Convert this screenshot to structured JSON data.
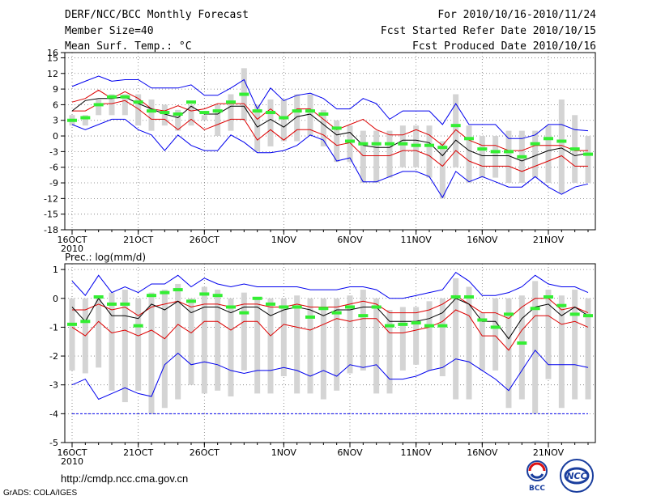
{
  "header": {
    "title": "DERF/NCC/BCC Monthly Forecast",
    "member_size": "Member Size=40",
    "variable1": "Mean Surf. Temp.: °C",
    "period": "For 2010/10/16-2010/11/24",
    "started": "Fcst Started Refer Date 2010/10/15",
    "produced": "Fcst Produced Date 2010/10/16"
  },
  "footer": {
    "url": "http://cmdp.ncc.cma.gov.cn",
    "grads": "GrADS: COLA/IGES",
    "logo_left": "BCC",
    "logo_right": "NCC"
  },
  "colors": {
    "box": "#d4d4d4",
    "envelope": "#0000ee",
    "band": "#dd0000",
    "mean": "#000000",
    "marker": "#33ee33",
    "grid": "#777777"
  },
  "chart_data": [
    {
      "type": "box-line",
      "title": "Mean Surf. Temp.: °C",
      "xlabel": "",
      "ylabel": "",
      "ylim": [
        -18,
        16
      ],
      "yticks": [
        -18,
        -15,
        -12,
        -9,
        -6,
        -3,
        0,
        3,
        6,
        9,
        12,
        15,
        16
      ],
      "xticks": [
        {
          "day": 0,
          "label": "16OCT"
        },
        {
          "day": 5,
          "label": "21OCT"
        },
        {
          "day": 10,
          "label": "26OCT"
        },
        {
          "day": 16,
          "label": "1NOV"
        },
        {
          "day": 21,
          "label": "6NOV"
        },
        {
          "day": 26,
          "label": "11NOV"
        },
        {
          "day": 31,
          "label": "16NOV"
        },
        {
          "day": 36,
          "label": "21NOV"
        }
      ],
      "year_label": "2010",
      "days": 40,
      "x": [
        0,
        1,
        2,
        3,
        4,
        5,
        6,
        7,
        8,
        9,
        10,
        11,
        12,
        13,
        14,
        15,
        16,
        17,
        18,
        19,
        20,
        21,
        22,
        23,
        24,
        25,
        26,
        27,
        28,
        29,
        30,
        31,
        32,
        33,
        34,
        35,
        36,
        37,
        38,
        39
      ],
      "series": [
        {
          "name": "max",
          "values": [
            9.5,
            10.5,
            11.5,
            10.5,
            10.8,
            10.8,
            9.2,
            9.2,
            9.2,
            9.8,
            7.8,
            7.8,
            9.2,
            10.8,
            5.2,
            9.2,
            6.8,
            7.8,
            8.2,
            7.2,
            5.2,
            5.2,
            7.2,
            6.2,
            3.2,
            4.8,
            4.8,
            4.8,
            2.2,
            6.2,
            2.2,
            2.2,
            2.2,
            -0.5,
            -0.5,
            0.2,
            2.2,
            2.2,
            1.2,
            1.0
          ]
        },
        {
          "name": "q_upper",
          "values": [
            6.5,
            7.2,
            8.8,
            7.2,
            8.5,
            7.2,
            5.2,
            4.8,
            5.8,
            4.8,
            5.2,
            6.2,
            6.2,
            6.2,
            3.2,
            5.2,
            3.2,
            5.2,
            5.2,
            3.2,
            1.2,
            2.2,
            3.2,
            1.2,
            0.2,
            0.2,
            1.2,
            0.2,
            -1.8,
            1.2,
            -0.8,
            -1.8,
            -1.8,
            -2.8,
            -2.8,
            -1.8,
            -1.8,
            -1.8,
            -2.8,
            -2.8
          ]
        },
        {
          "name": "mean",
          "values": [
            4.8,
            6.8,
            7.2,
            7.2,
            7.5,
            6.2,
            5.2,
            4.2,
            3.5,
            5.7,
            4.2,
            4.2,
            5.7,
            5.7,
            1.7,
            3.2,
            1.7,
            3.7,
            4.2,
            2.2,
            0.2,
            0.7,
            -1.8,
            -2.2,
            -2.2,
            -0.8,
            -0.8,
            -1.3,
            -3.8,
            -0.8,
            -2.8,
            -3.8,
            -3.8,
            -3.8,
            -4.8,
            -3.8,
            -2.8,
            -2.3,
            -3.8,
            -3.3
          ]
        },
        {
          "name": "q_lower",
          "values": [
            4.8,
            4.8,
            6.2,
            6.2,
            6.8,
            5.2,
            3.2,
            3.2,
            1.2,
            3.2,
            1.2,
            2.2,
            3.2,
            3.2,
            -0.8,
            1.2,
            -0.8,
            1.2,
            1.2,
            0.2,
            -1.8,
            -1.3,
            -3.8,
            -3.8,
            -3.8,
            -2.8,
            -2.8,
            -3.8,
            -5.8,
            -2.8,
            -4.8,
            -5.8,
            -5.8,
            -5.8,
            -6.8,
            -5.8,
            -4.8,
            -3.8,
            -5.8,
            -5.8
          ]
        },
        {
          "name": "min",
          "values": [
            2.2,
            1.2,
            2.2,
            3.2,
            3.2,
            1.2,
            0.2,
            -2.8,
            0.2,
            -1.8,
            -2.8,
            -2.8,
            0.2,
            -1.2,
            -3.2,
            -3.2,
            -2.8,
            -1.8,
            0.2,
            -0.8,
            -4.8,
            -4.2,
            -8.8,
            -8.8,
            -7.8,
            -6.8,
            -6.8,
            -7.8,
            -11.8,
            -6.8,
            -8.8,
            -7.8,
            -8.8,
            -9.8,
            -9.8,
            -7.8,
            -9.8,
            -11.2,
            -9.8,
            -9.2
          ]
        },
        {
          "name": "box_high",
          "values": [
            4,
            4,
            7,
            8,
            8,
            8,
            7,
            6,
            5,
            6,
            4,
            6,
            8,
            13,
            6,
            7,
            7,
            8,
            8,
            5,
            3,
            2,
            1,
            1,
            1,
            2,
            2,
            2,
            -1,
            8,
            2,
            0,
            0,
            1,
            1,
            1,
            2,
            7,
            4,
            0
          ]
        },
        {
          "name": "box_low",
          "values": [
            2,
            2,
            4,
            4,
            4,
            2,
            1,
            2,
            1,
            2,
            3,
            0,
            1,
            3,
            -3,
            -2,
            -1,
            -1,
            0,
            -2,
            -5,
            -5,
            -9,
            -9,
            -8,
            -6,
            -6,
            -8,
            -12,
            -6,
            -9,
            -8,
            -8,
            -9,
            -9,
            -8,
            -9,
            -11,
            -9,
            -9
          ]
        },
        {
          "name": "observed",
          "values": [
            3,
            3.5,
            6,
            7.5,
            7.5,
            6.5,
            4.8,
            4.5,
            4.2,
            6.5,
            4.5,
            4.8,
            6.5,
            8,
            4.8,
            4.5,
            3.5,
            4.8,
            4.8,
            4.2,
            1.5,
            -1,
            -1.5,
            -1.5,
            -1.5,
            -1.5,
            -1.8,
            -1.8,
            -2.2,
            2,
            -0.5,
            -2.5,
            -3,
            -3,
            -4,
            -1.5,
            -0.5,
            -1,
            -2.5,
            -3.5
          ]
        }
      ]
    },
    {
      "type": "box-line",
      "title": "Prec.: log(mm/d)",
      "xlabel": "",
      "ylabel": "",
      "ylim": [
        -5,
        1.2
      ],
      "yticks": [
        -5,
        -4,
        -3,
        -2,
        -1,
        0,
        1
      ],
      "xticks": [
        {
          "day": 0,
          "label": "16OCT"
        },
        {
          "day": 5,
          "label": "21OCT"
        },
        {
          "day": 10,
          "label": "26OCT"
        },
        {
          "day": 16,
          "label": "1NOV"
        },
        {
          "day": 21,
          "label": "6NOV"
        },
        {
          "day": 26,
          "label": "11NOV"
        },
        {
          "day": 31,
          "label": "16NOV"
        },
        {
          "day": 36,
          "label": "21NOV"
        }
      ],
      "year_label": "2010",
      "days": 40,
      "x": [
        0,
        1,
        2,
        3,
        4,
        5,
        6,
        7,
        8,
        9,
        10,
        11,
        12,
        13,
        14,
        15,
        16,
        17,
        18,
        19,
        20,
        21,
        22,
        23,
        24,
        25,
        26,
        27,
        28,
        29,
        30,
        31,
        32,
        33,
        34,
        35,
        36,
        37,
        38,
        39
      ],
      "series": [
        {
          "name": "max",
          "values": [
            0.6,
            0.1,
            0.8,
            0.2,
            0.4,
            0.2,
            0.5,
            0.5,
            0.8,
            0.4,
            0.7,
            0.5,
            0.4,
            0.5,
            0.4,
            0.4,
            0.4,
            0.4,
            0.3,
            0.3,
            0.3,
            0.4,
            0.4,
            0.3,
            0,
            0,
            0.1,
            0.2,
            0.3,
            0.9,
            0.6,
            0.1,
            0.1,
            0.2,
            0.4,
            0.8,
            0.5,
            0.4,
            0.4,
            0.2
          ]
        },
        {
          "name": "q_upper",
          "values": [
            -0.4,
            -0.4,
            -0.2,
            -0.4,
            -0.3,
            -0.6,
            -0.3,
            -0.2,
            -0.1,
            -0.3,
            -0.2,
            -0.2,
            -0.3,
            -0.2,
            -0.2,
            -0.3,
            -0.3,
            -0.2,
            -0.3,
            -0.3,
            -0.3,
            -0.2,
            -0.1,
            -0.2,
            -0.5,
            -0.5,
            -0.5,
            -0.4,
            -0.2,
            0.1,
            -0.2,
            -0.5,
            -0.5,
            -0.7,
            -0.3,
            0,
            0,
            -0.4,
            -0.3,
            -0.5
          ]
        },
        {
          "name": "mean",
          "values": [
            -0.3,
            -0.8,
            0,
            -0.6,
            -0.6,
            -0.7,
            -0.2,
            -0.4,
            -0.1,
            -0.5,
            -0.3,
            -0.3,
            -0.5,
            -0.3,
            -0.3,
            -0.6,
            -0.4,
            -0.3,
            -0.4,
            -0.6,
            -0.4,
            -0.4,
            -0.3,
            -0.3,
            -0.8,
            -0.8,
            -0.8,
            -0.7,
            -0.5,
            0,
            -0.2,
            -0.8,
            -0.8,
            -1.4,
            -0.7,
            -0.3,
            -0.2,
            -0.6,
            -0.3,
            -0.6
          ]
        },
        {
          "name": "q_lower",
          "values": [
            -1,
            -1.3,
            -0.8,
            -1.2,
            -1.1,
            -1.3,
            -1.1,
            -1.4,
            -0.9,
            -1.2,
            -0.8,
            -0.8,
            -1.1,
            -0.8,
            -0.8,
            -1.3,
            -0.9,
            -1,
            -1.1,
            -0.9,
            -0.7,
            -0.8,
            -0.7,
            -0.7,
            -1.2,
            -1.2,
            -1.1,
            -1,
            -0.8,
            -0.4,
            -0.6,
            -1.3,
            -1.3,
            -1.8,
            -1.1,
            -0.6,
            -0.6,
            -0.9,
            -0.8,
            -1
          ]
        },
        {
          "name": "min",
          "values": [
            -3,
            -2.8,
            -3.5,
            -3.3,
            -3.1,
            -3.3,
            -3.4,
            -2.3,
            -1.9,
            -2.3,
            -2.2,
            -2.3,
            -2.5,
            -2.6,
            -2.5,
            -2.5,
            -2.4,
            -2.5,
            -2.7,
            -2.5,
            -2.7,
            -2.3,
            -2.4,
            -2.3,
            -2.8,
            -2.8,
            -2.7,
            -2.5,
            -2.4,
            -2.1,
            -2.2,
            -2.5,
            -2.8,
            -3.2,
            -2.5,
            -1.8,
            -2.3,
            -2.3,
            -2.3,
            -2.4
          ]
        },
        {
          "name": "box_high",
          "values": [
            0,
            0,
            0,
            0.2,
            0.3,
            0,
            0.2,
            0.3,
            0.5,
            0,
            0.4,
            0.3,
            0,
            0.2,
            0,
            0,
            0,
            0.1,
            0,
            0,
            0,
            0.1,
            0.3,
            0,
            -0.4,
            -0.3,
            -0.3,
            -0.1,
            0,
            0.7,
            0.4,
            -0.5,
            0,
            0,
            0.1,
            0.6,
            0.3,
            0.1,
            0.3,
            0
          ]
        },
        {
          "name": "box_low",
          "values": [
            -2.5,
            -2.6,
            -2.4,
            -3.2,
            -3.6,
            -3.2,
            -4,
            -3.8,
            -3.5,
            -3,
            -3.3,
            -3.2,
            -3.4,
            -2.5,
            -3.3,
            -3.3,
            -2.7,
            -3.3,
            -3.3,
            -3.5,
            -3.2,
            -2.6,
            -2.5,
            -3.3,
            -3.3,
            -2.5,
            -2.3,
            -2.5,
            -2.7,
            -3.5,
            -3.5,
            -2.5,
            -2.5,
            -3.8,
            -3.5,
            -4,
            -2.8,
            -3.8,
            -3.5,
            -3.5
          ]
        },
        {
          "name": "observed",
          "values": [
            -0.9,
            -0.8,
            0.05,
            -0.2,
            -0.2,
            -0.95,
            0.1,
            0.2,
            0.3,
            -0.1,
            0.15,
            0.1,
            -0.3,
            -0.5,
            0,
            -0.2,
            -0.3,
            -0.3,
            -0.65,
            -0.35,
            -0.5,
            -0.3,
            -0.6,
            -0.3,
            -0.95,
            -0.9,
            -0.85,
            -0.95,
            -0.95,
            0.05,
            0.05,
            -0.75,
            -1,
            -0.55,
            -1.55,
            -0.35,
            0.05,
            -0.25,
            -0.55,
            -0.6
          ]
        },
        {
          "name": "baseline",
          "values": [
            -4
          ]
        }
      ]
    }
  ]
}
